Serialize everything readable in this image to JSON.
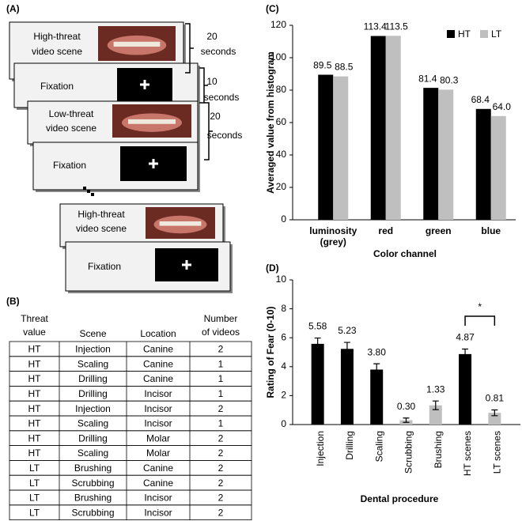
{
  "panel_labels": [
    "(A)",
    "(B)",
    "(C)",
    "(D)"
  ],
  "diagram": {
    "steps": [
      {
        "label": [
          "High-threat",
          "video scene"
        ]
      },
      {
        "label": [
          "Fixation"
        ]
      },
      {
        "label": [
          "Low-threat",
          "video scene"
        ]
      },
      {
        "label": [
          "Fixation"
        ]
      },
      {
        "label": [
          "High-threat",
          "video scene"
        ]
      },
      {
        "label": [
          "Fixation"
        ]
      }
    ],
    "durations": [
      [
        "20",
        "seconds"
      ],
      [
        "10",
        "seconds"
      ],
      [
        "20",
        "seconds"
      ]
    ]
  },
  "table": {
    "header": [
      [
        "Threat",
        "value"
      ],
      [
        "Scene"
      ],
      [
        "Location"
      ],
      [
        "Number",
        "of videos"
      ]
    ],
    "rows": [
      [
        "HT",
        "Injection",
        "Canine",
        "2"
      ],
      [
        "HT",
        "Scaling",
        "Canine",
        "1"
      ],
      [
        "HT",
        "Drilling",
        "Canine",
        "1"
      ],
      [
        "HT",
        "Drilling",
        "Incisor",
        "1"
      ],
      [
        "HT",
        "Injection",
        "Incisor",
        "2"
      ],
      [
        "HT",
        "Scaling",
        "Incisor",
        "1"
      ],
      [
        "HT",
        "Drilling",
        "Molar",
        "2"
      ],
      [
        "HT",
        "Scaling",
        "Molar",
        "2"
      ],
      [
        "LT",
        "Brushing",
        "Canine",
        "2"
      ],
      [
        "LT",
        "Scrubbing",
        "Canine",
        "2"
      ],
      [
        "LT",
        "Brushing",
        "Incisor",
        "2"
      ],
      [
        "LT",
        "Scrubbing",
        "Incisor",
        "2"
      ]
    ]
  },
  "chart_data": [
    {
      "type": "bar",
      "y_label": "Averaged value from histogram",
      "x_label": "Color channel",
      "categories": [
        "luminosity (grey)",
        "red",
        "green",
        "blue"
      ],
      "series": [
        {
          "name": "HT",
          "color": "#000000",
          "values": [
            89.5,
            113.4,
            81.4,
            68.4
          ],
          "value_labels": [
            "89.5",
            "113.4",
            "81.4",
            "68.4"
          ]
        },
        {
          "name": "LT",
          "color": "#bfbfbf",
          "values": [
            88.5,
            113.5,
            80.3,
            64.0
          ],
          "value_labels": [
            "88.5",
            "113.5",
            "80.3",
            "64.0"
          ]
        }
      ],
      "ylim": [
        0,
        120
      ],
      "yticks": [
        0,
        20,
        40,
        60,
        80,
        100,
        120
      ],
      "legend": "top-right"
    },
    {
      "type": "errorbar",
      "y_label": "Rating of Fear (0-10)",
      "x_label": "Dental procedure",
      "categories": [
        "Injection",
        "Drilling",
        "Scaling",
        "Scrubbing",
        "Brushing",
        "HT scenes",
        "LT scenes"
      ],
      "values": [
        5.58,
        5.23,
        3.8,
        0.3,
        1.33,
        4.87,
        0.81
      ],
      "value_labels": [
        "5.58",
        "5.23",
        "3.80",
        "0.30",
        "1.33",
        "4.87",
        "0.81"
      ],
      "errors": [
        0.4,
        0.45,
        0.4,
        0.15,
        0.3,
        0.35,
        0.2
      ],
      "colors": [
        "#000000",
        "#000000",
        "#000000",
        "#bfbfbf",
        "#bfbfbf",
        "#000000",
        "#bfbfbf"
      ],
      "ylim": [
        0,
        10
      ],
      "yticks": [
        0,
        2,
        4,
        6,
        8,
        10
      ],
      "annotation": "*"
    }
  ]
}
